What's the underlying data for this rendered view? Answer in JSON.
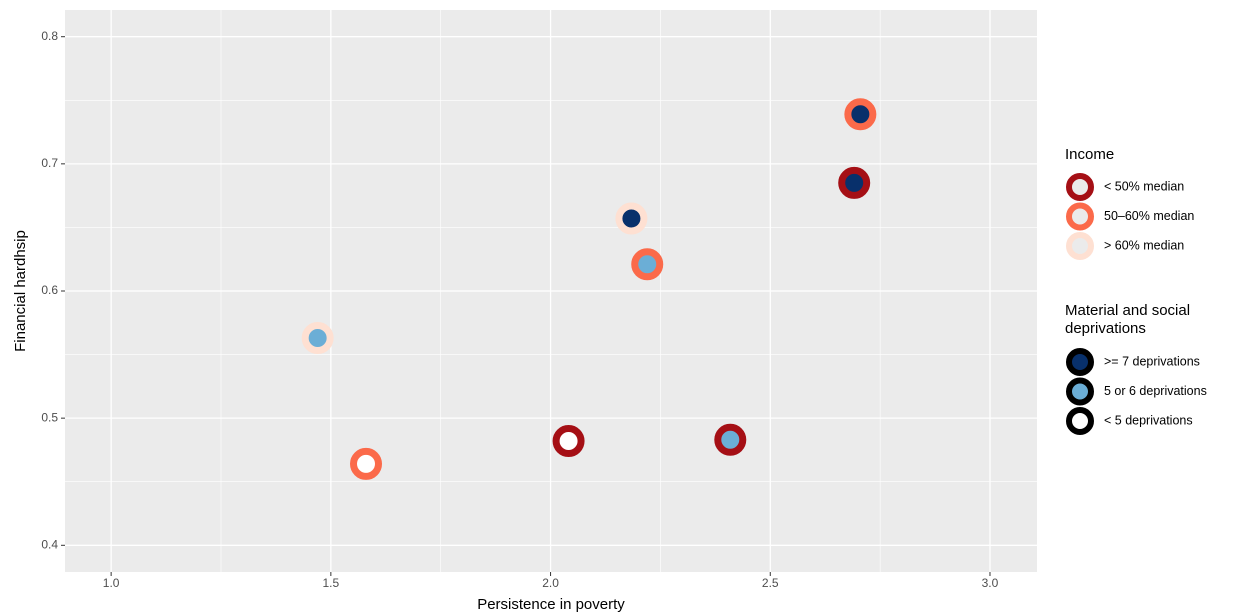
{
  "chart_data": {
    "type": "scatter",
    "x_label": "Persistence in poverty",
    "y_label": "Financial hardhsip",
    "xlim": [
      0.895,
      3.107
    ],
    "ylim": [
      0.379,
      0.821
    ],
    "xticks": [
      {
        "value": 1,
        "label": "1.0"
      },
      {
        "value": 1.5,
        "label": "1.5"
      },
      {
        "value": 2,
        "label": "2.0"
      },
      {
        "value": 2.5,
        "label": "2.5"
      },
      {
        "value": 3,
        "label": "3.0"
      }
    ],
    "yticks": [
      0.4,
      0.5,
      0.6,
      0.7,
      0.8
    ],
    "x_minor": [
      1.25,
      1.75,
      2.25,
      2.75
    ],
    "y_minor": [
      0.45,
      0.55,
      0.65,
      0.75
    ],
    "grid": true,
    "series": [
      {
        "name": "< 50% median",
        "color": "#a50f15",
        "x": [
          2.041,
          2.409,
          2.691
        ],
        "values": [
          0.482,
          0.483,
          0.685
        ],
        "deprivation": [
          "< 5 deprivations",
          "5 or 6 deprivations",
          ">= 7 deprivations"
        ]
      },
      {
        "name": "50–60% median",
        "color": "#fb6a4a",
        "x": [
          1.58,
          2.22,
          2.705
        ],
        "values": [
          0.464,
          0.621,
          0.739
        ],
        "deprivation": [
          "< 5 deprivations",
          "5 or 6 deprivations",
          ">= 7 deprivations"
        ]
      },
      {
        "name": "> 60% median",
        "color": "#fee0d2",
        "x": [
          1.47,
          2.184
        ],
        "values": [
          0.563,
          0.657
        ],
        "deprivation": [
          "5 or 6 deprivations",
          ">= 7 deprivations"
        ]
      }
    ],
    "income_legend_title": "Income",
    "deprivation_legend": {
      "title": [
        "Material and social",
        " deprivations"
      ],
      "color": "#000000",
      "items": [
        {
          "name": ">= 7 deprivations",
          "color": "#08306b"
        },
        {
          "name": "5 or 6 deprivations",
          "color": "#6baed6"
        },
        {
          "name": "< 5 deprivations",
          "color": "#ffffff"
        }
      ]
    }
  }
}
